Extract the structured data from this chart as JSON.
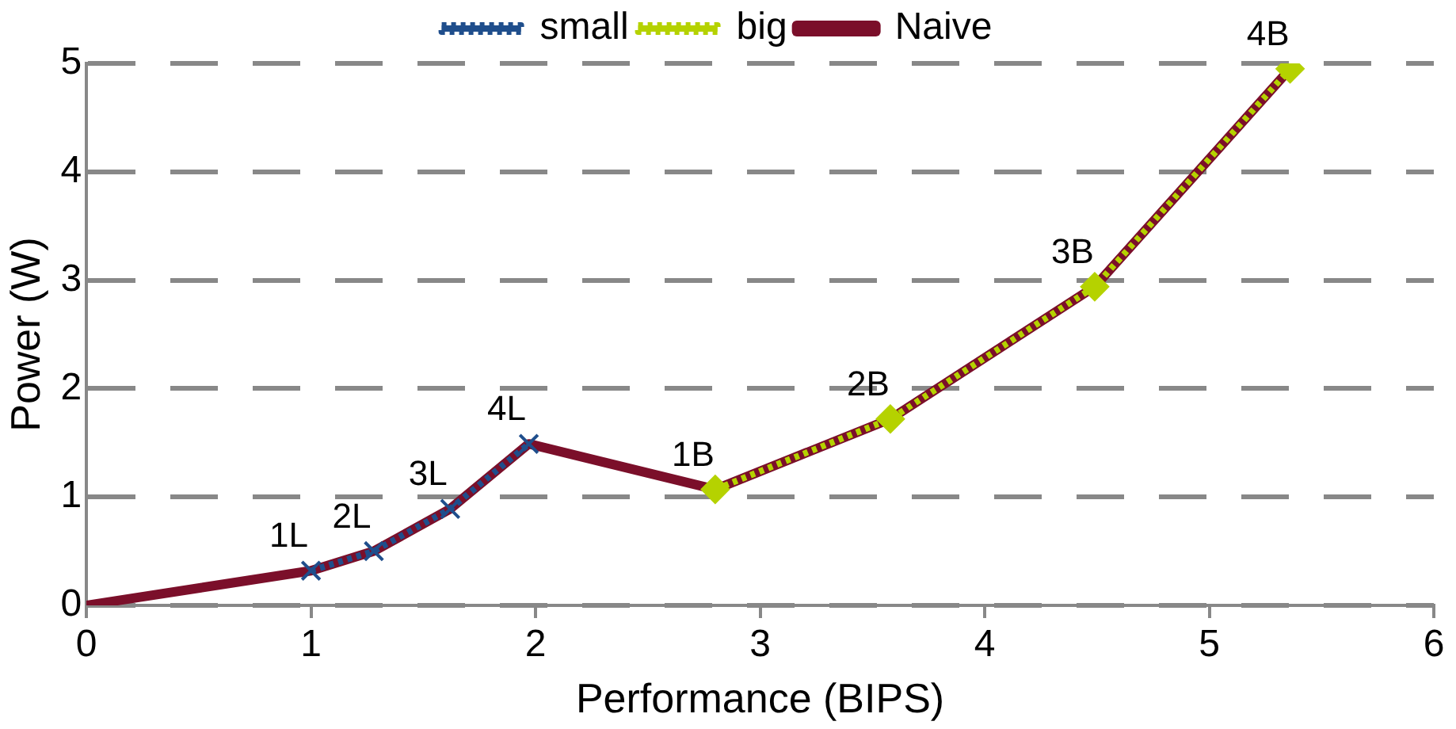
{
  "chart_data": {
    "type": "line",
    "xlabel": "Performance (BIPS)",
    "ylabel": "Power (W)",
    "xlim": [
      0,
      6
    ],
    "xticks": [
      0,
      1,
      2,
      3,
      4,
      5,
      6
    ],
    "ylim": [
      0,
      5
    ],
    "yticks": [
      0,
      1,
      2,
      3,
      4,
      5
    ],
    "grid": "y",
    "legend": "top",
    "series": [
      {
        "name": "small",
        "color": "#1f4e8c",
        "marker": "cross",
        "line_style": "dotted",
        "x": [
          1,
          1.28,
          1.62,
          1.97
        ],
        "values": [
          0.32,
          0.5,
          0.89,
          1.49
        ]
      },
      {
        "name": "big",
        "color": "#b5d200",
        "marker": "diamond",
        "line_style": "dotted",
        "x": [
          2.8,
          3.58,
          4.49,
          5.36
        ],
        "values": [
          1.07,
          1.72,
          2.94,
          4.95
        ]
      },
      {
        "name": "Naive",
        "color": "#7b0f2a",
        "marker": "none",
        "line_style": "solid",
        "x": [
          0,
          1,
          1.28,
          1.62,
          1.97,
          2.8,
          3.58,
          4.49,
          5.36
        ],
        "values": [
          0,
          0.32,
          0.5,
          0.89,
          1.49,
          1.07,
          1.72,
          2.94,
          4.95
        ]
      }
    ],
    "annotations": [
      {
        "text": "1L",
        "x": 1,
        "y": 0.32
      },
      {
        "text": "2L",
        "x": 1.28,
        "y": 0.5
      },
      {
        "text": "3L",
        "x": 1.62,
        "y": 0.89
      },
      {
        "text": "4L",
        "x": 1.97,
        "y": 1.49
      },
      {
        "text": "1B",
        "x": 2.8,
        "y": 1.07
      },
      {
        "text": "2B",
        "x": 3.58,
        "y": 1.72
      },
      {
        "text": "3B",
        "x": 4.49,
        "y": 2.94
      },
      {
        "text": "4B",
        "x": 5.36,
        "y": 4.95
      }
    ]
  }
}
